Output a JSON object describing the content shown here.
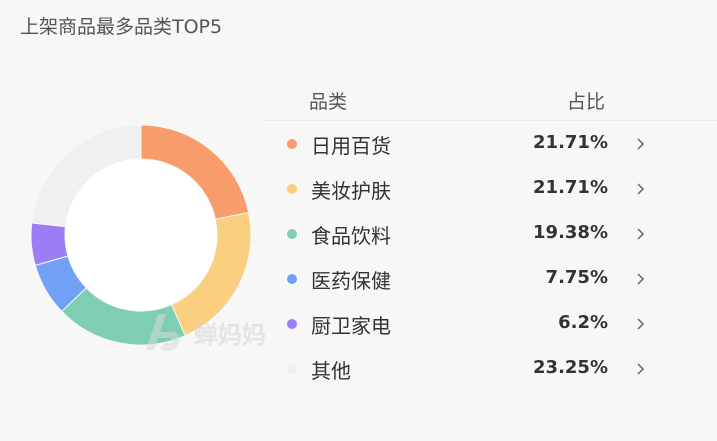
{
  "title": "上架商品最多品类TOP5",
  "table_header": {
    "category": "品类",
    "share": "占比"
  },
  "watermark_text": "蝉妈妈",
  "chart_data": {
    "type": "pie",
    "donut": true,
    "categories": [
      "日用百货",
      "美妆护肤",
      "食品饮料",
      "医药保健",
      "厨卫家电",
      "其他"
    ],
    "values": [
      21.71,
      21.71,
      19.38,
      7.75,
      6.2,
      23.25
    ],
    "value_labels": [
      "21.71%",
      "21.71%",
      "19.38%",
      "7.75%",
      "6.2%",
      "23.25%"
    ],
    "colors": [
      "#f89c6c",
      "#fad080",
      "#7ecdb4",
      "#72a0f5",
      "#9b7ef5",
      "#eff0f2"
    ],
    "unit": "%",
    "legend_position": "right"
  }
}
